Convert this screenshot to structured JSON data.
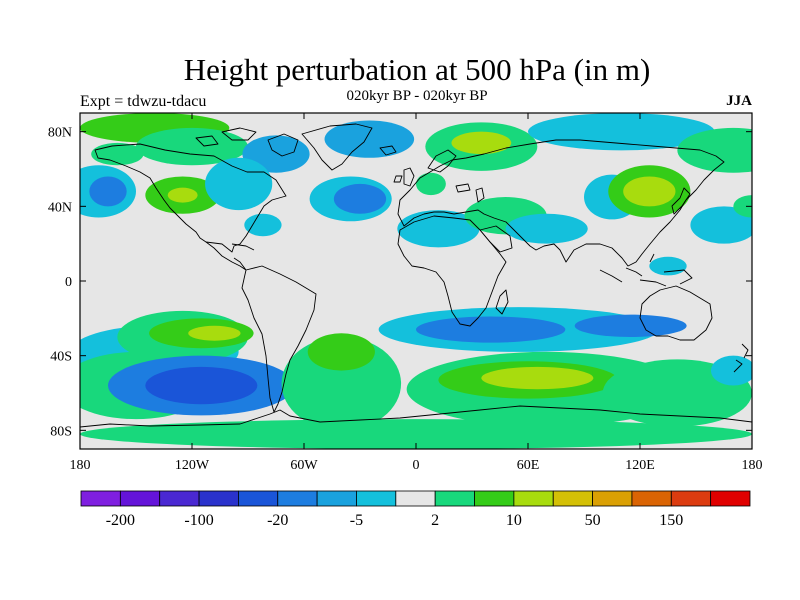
{
  "title": "Height perturbation at 500 hPa (in m)",
  "subtitle": "020kyr BP - 020kyr BP",
  "experiment": "Expt = tdwzu-tdacu",
  "season": "JJA",
  "chart_data": {
    "type": "heatmap",
    "projection": "cylindrical equidistant",
    "x_range": [
      -180,
      180
    ],
    "y_range": [
      -90,
      90
    ],
    "x_ticks": [
      {
        "value": -180,
        "label": "180"
      },
      {
        "value": -120,
        "label": "120W"
      },
      {
        "value": -60,
        "label": "60W"
      },
      {
        "value": 0,
        "label": "0"
      },
      {
        "value": 60,
        "label": "60E"
      },
      {
        "value": 120,
        "label": "120E"
      },
      {
        "value": 180,
        "label": "180"
      }
    ],
    "y_ticks": [
      {
        "value": 80,
        "label": "80N"
      },
      {
        "value": 40,
        "label": "40N"
      },
      {
        "value": 0,
        "label": "0"
      },
      {
        "value": -40,
        "label": "40S"
      },
      {
        "value": -80,
        "label": "80S"
      }
    ],
    "colorbar": {
      "colors": [
        "#7f1fe0",
        "#6414d9",
        "#4a28d2",
        "#2a32cc",
        "#1a55d8",
        "#1d7de0",
        "#1aa2de",
        "#14c0dc",
        "#e6e6e6",
        "#18d87c",
        "#34cc18",
        "#a8dc0e",
        "#d4c006",
        "#daa004",
        "#da6404",
        "#dc3c10",
        "#e00000"
      ],
      "labels": [
        {
          "after_box": 1,
          "text": "-200"
        },
        {
          "after_box": 3,
          "text": "-100"
        },
        {
          "after_box": 5,
          "text": "-20"
        },
        {
          "after_box": 7,
          "text": "-5"
        },
        {
          "after_box": 9,
          "text": "2"
        },
        {
          "after_box": 11,
          "text": "10"
        },
        {
          "after_box": 13,
          "text": "50"
        },
        {
          "after_box": 15,
          "text": "150"
        }
      ]
    },
    "fields": [
      {
        "lon": -140,
        "lat": 82,
        "rlon": 40,
        "rlat": 8,
        "level": 10
      },
      {
        "lon": -120,
        "lat": 72,
        "rlon": 30,
        "rlat": 10,
        "level": 9
      },
      {
        "lon": -160,
        "lat": 68,
        "rlon": 14,
        "rlat": 6,
        "level": 9
      },
      {
        "lon": -75,
        "lat": 68,
        "rlon": 18,
        "rlat": 10,
        "level": 6
      },
      {
        "lon": -25,
        "lat": 76,
        "rlon": 24,
        "rlat": 10,
        "level": 6
      },
      {
        "lon": 35,
        "lat": 72,
        "rlon": 30,
        "rlat": 13,
        "level": 9
      },
      {
        "lon": 35,
        "lat": 74,
        "rlon": 16,
        "rlat": 6,
        "level": 11
      },
      {
        "lon": 110,
        "lat": 80,
        "rlon": 50,
        "rlat": 10,
        "level": 7
      },
      {
        "lon": 170,
        "lat": 70,
        "rlon": 30,
        "rlat": 12,
        "level": 9
      },
      {
        "lon": -170,
        "lat": 48,
        "rlon": 20,
        "rlat": 14,
        "level": 7
      },
      {
        "lon": -165,
        "lat": 48,
        "rlon": 10,
        "rlat": 8,
        "level": 5
      },
      {
        "lon": -125,
        "lat": 46,
        "rlon": 20,
        "rlat": 10,
        "level": 10
      },
      {
        "lon": -125,
        "lat": 46,
        "rlon": 8,
        "rlat": 4,
        "level": 11
      },
      {
        "lon": -95,
        "lat": 52,
        "rlon": 18,
        "rlat": 14,
        "level": 7
      },
      {
        "lon": -82,
        "lat": 30,
        "rlon": 10,
        "rlat": 6,
        "level": 7
      },
      {
        "lon": -35,
        "lat": 44,
        "rlon": 22,
        "rlat": 12,
        "level": 7
      },
      {
        "lon": -30,
        "lat": 44,
        "rlon": 14,
        "rlat": 8,
        "level": 5
      },
      {
        "lon": 8,
        "lat": 52,
        "rlon": 8,
        "rlat": 6,
        "level": 9
      },
      {
        "lon": 12,
        "lat": 28,
        "rlon": 22,
        "rlat": 10,
        "level": 7
      },
      {
        "lon": 48,
        "lat": 35,
        "rlon": 22,
        "rlat": 10,
        "level": 9
      },
      {
        "lon": 70,
        "lat": 28,
        "rlon": 22,
        "rlat": 8,
        "level": 7
      },
      {
        "lon": 105,
        "lat": 45,
        "rlon": 15,
        "rlat": 12,
        "level": 7
      },
      {
        "lon": 125,
        "lat": 48,
        "rlon": 22,
        "rlat": 14,
        "level": 10
      },
      {
        "lon": 125,
        "lat": 48,
        "rlon": 14,
        "rlat": 8,
        "level": 11
      },
      {
        "lon": 165,
        "lat": 30,
        "rlon": 18,
        "rlat": 10,
        "level": 7
      },
      {
        "lon": 180,
        "lat": 40,
        "rlon": 10,
        "rlat": 6,
        "level": 9
      },
      {
        "lon": 135,
        "lat": 8,
        "rlon": 10,
        "rlat": 5,
        "level": 7
      },
      {
        "lon": -140,
        "lat": -38,
        "rlon": 45,
        "rlat": 14,
        "level": 7
      },
      {
        "lon": -125,
        "lat": -30,
        "rlon": 35,
        "rlat": 14,
        "level": 9
      },
      {
        "lon": -115,
        "lat": -28,
        "rlon": 28,
        "rlat": 8,
        "level": 10
      },
      {
        "lon": -108,
        "lat": -28,
        "rlon": 14,
        "rlat": 4,
        "level": 11
      },
      {
        "lon": -150,
        "lat": -56,
        "rlon": 40,
        "rlat": 18,
        "level": 9
      },
      {
        "lon": -115,
        "lat": -56,
        "rlon": 50,
        "rlat": 16,
        "level": 5
      },
      {
        "lon": -115,
        "lat": -56,
        "rlon": 30,
        "rlat": 10,
        "level": 4
      },
      {
        "lon": -40,
        "lat": -55,
        "rlon": 32,
        "rlat": 25,
        "level": 9
      },
      {
        "lon": -40,
        "lat": -38,
        "rlon": 18,
        "rlat": 10,
        "level": 10
      },
      {
        "lon": 55,
        "lat": -26,
        "rlon": 75,
        "rlat": 12,
        "level": 7
      },
      {
        "lon": 40,
        "lat": -26,
        "rlon": 40,
        "rlat": 7,
        "level": 5
      },
      {
        "lon": 115,
        "lat": -24,
        "rlon": 30,
        "rlat": 6,
        "level": 5
      },
      {
        "lon": 70,
        "lat": -58,
        "rlon": 75,
        "rlat": 20,
        "level": 9
      },
      {
        "lon": 60,
        "lat": -53,
        "rlon": 48,
        "rlat": 10,
        "level": 10
      },
      {
        "lon": 65,
        "lat": -52,
        "rlon": 30,
        "rlat": 6,
        "level": 11
      },
      {
        "lon": 140,
        "lat": -60,
        "rlon": 40,
        "rlat": 18,
        "level": 9
      },
      {
        "lon": 170,
        "lat": -48,
        "rlon": 12,
        "rlat": 8,
        "level": 7
      },
      {
        "lon": 0,
        "lat": -82,
        "rlon": 180,
        "rlat": 8,
        "level": 9
      }
    ]
  }
}
